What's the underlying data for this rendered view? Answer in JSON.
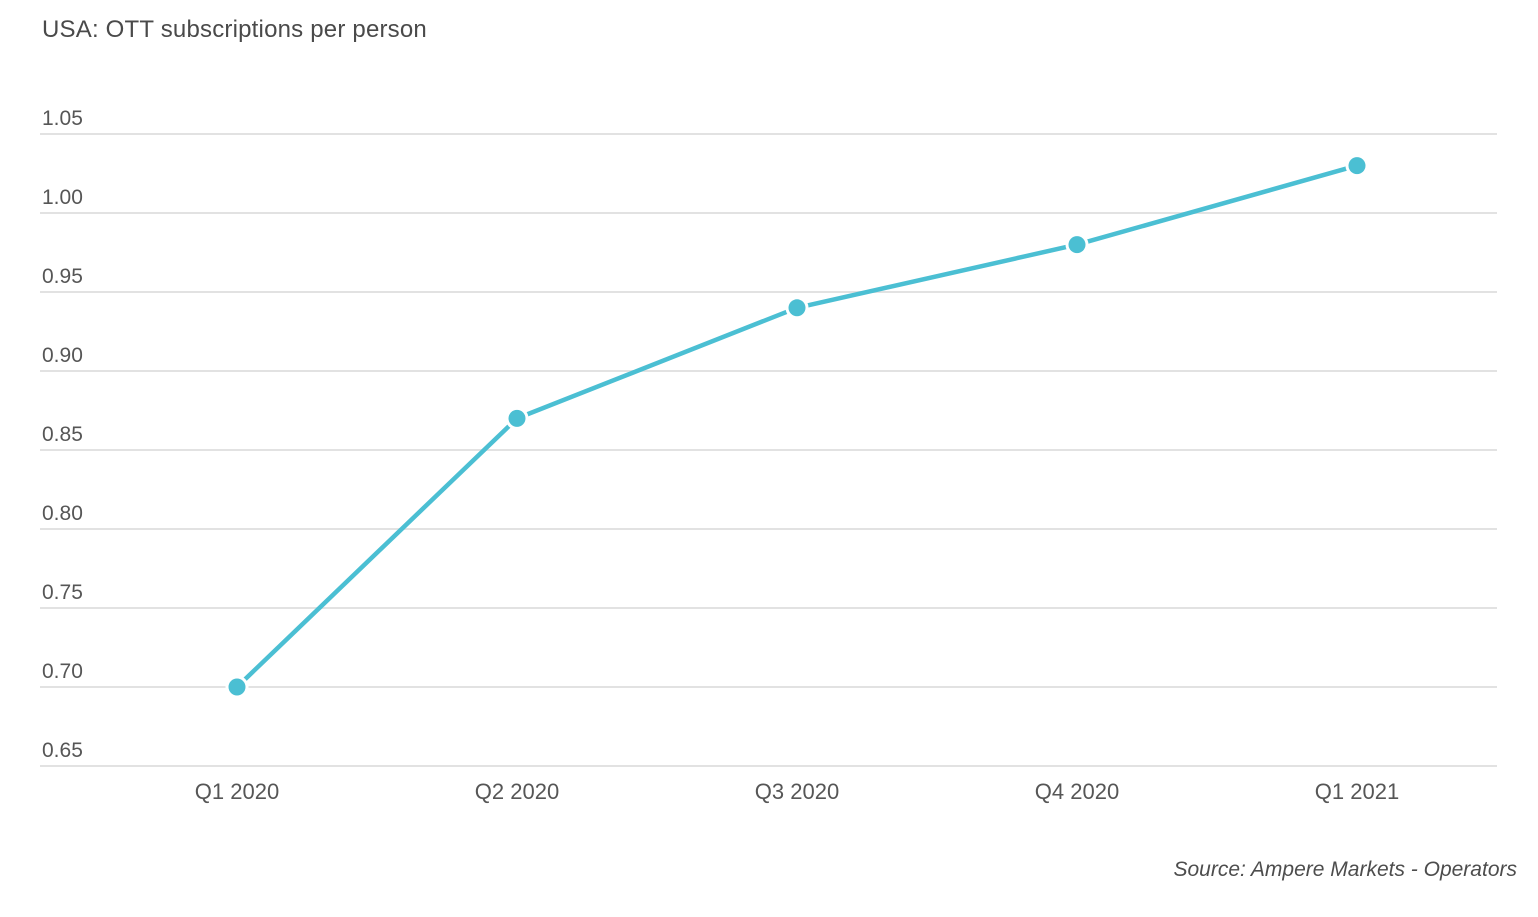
{
  "page": {
    "title": "USA: OTT subscriptions per person",
    "source": "Source: Ampere Markets - Operators"
  },
  "chart_data": {
    "type": "line",
    "title": "USA: OTT subscriptions per person",
    "categories": [
      "Q1 2020",
      "Q2 2020",
      "Q3 2020",
      "Q4 2020",
      "Q1 2021"
    ],
    "values": [
      0.7,
      0.87,
      0.94,
      0.98,
      1.03
    ],
    "xlabel": "",
    "ylabel": "",
    "ylim": [
      0.65,
      1.05
    ],
    "ytick_step": 0.05,
    "ytick_format_decimals": 2,
    "grid": true,
    "legend": false,
    "line_color": "#4BBFD3",
    "grid_color": "#e2e2e2",
    "tick_text_color": "#565656",
    "background": "#ffffff",
    "source": "Source: Ampere Markets - Operators"
  }
}
